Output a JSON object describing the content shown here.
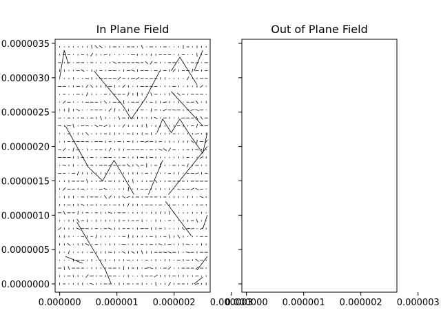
{
  "chart_data": [
    {
      "type": "quiver",
      "title": "In Plane Field",
      "xlabel": "",
      "ylabel": "",
      "x_ticks": [
        "0.000000",
        "0.000001",
        "0.000002",
        "0.000003"
      ],
      "y_ticks": [
        "0.0000000",
        "0.0000005",
        "0.0000010",
        "0.0000015",
        "0.0000020",
        "0.0000025",
        "0.0000030",
        "0.0000035"
      ],
      "x_tick_values": [
        0,
        1e-06,
        2e-06,
        3e-06
      ],
      "y_tick_values": [
        0,
        5e-07,
        1e-06,
        1.5e-06,
        2e-06,
        2.5e-06,
        3e-06,
        3.5e-06
      ],
      "xlim": [
        -8e-08,
        2.63e-06
      ],
      "ylim": [
        -1.2e-07,
        3.56e-06
      ],
      "grid": false,
      "x_spacing": 8e-08,
      "y_spacing": 1.15e-07,
      "line_color": "#000000",
      "segments": [
        {
          "x0": 0.0,
          "y0": 3e-06,
          "x1": 8e-08,
          "y1": 3.4e-06
        },
        {
          "x0": 8e-08,
          "y0": 3.4e-06,
          "x1": 1.5e-07,
          "y1": 3.2e-06
        },
        {
          "x0": 6e-07,
          "y0": 3.1e-06,
          "x1": 1.1e-06,
          "y1": 2.6e-06
        },
        {
          "x0": 1.1e-06,
          "y0": 2.6e-06,
          "x1": 1.25e-06,
          "y1": 2.4e-06
        },
        {
          "x0": 1.25e-06,
          "y0": 2.4e-06,
          "x1": 1.5e-06,
          "y1": 2.7e-06
        },
        {
          "x0": 1.5e-06,
          "y0": 2.7e-06,
          "x1": 1.75e-06,
          "y1": 3.1e-06
        },
        {
          "x0": 1.95e-06,
          "y0": 3.1e-06,
          "x1": 2.1e-06,
          "y1": 3.3e-06
        },
        {
          "x0": 2.1e-06,
          "y0": 3.3e-06,
          "x1": 2.4e-06,
          "y1": 2.9e-06
        },
        {
          "x0": 2.35e-06,
          "y0": 3.1e-06,
          "x1": 2.5e-06,
          "y1": 3.4e-06
        },
        {
          "x0": 1.95e-06,
          "y0": 2.8e-06,
          "x1": 2.5e-06,
          "y1": 2.3e-06
        },
        {
          "x0": 1.7e-06,
          "y0": 2.2e-06,
          "x1": 1.8e-06,
          "y1": 2.4e-06
        },
        {
          "x0": 1.8e-06,
          "y0": 2.4e-06,
          "x1": 1.95e-06,
          "y1": 2.2e-06
        },
        {
          "x0": 1.95e-06,
          "y0": 2.2e-06,
          "x1": 2.1e-06,
          "y1": 2.4e-06
        },
        {
          "x0": 2.1e-06,
          "y0": 2.4e-06,
          "x1": 2.25e-06,
          "y1": 2.2e-06
        },
        {
          "x0": 2.25e-06,
          "y0": 2.2e-06,
          "x1": 2.5e-06,
          "y1": 1.9e-06
        },
        {
          "x0": 2.5e-06,
          "y0": 1.9e-06,
          "x1": 2.58e-06,
          "y1": 2.2e-06
        },
        {
          "x0": 1e-07,
          "y0": 2.3e-06,
          "x1": 5e-07,
          "y1": 1.7e-06
        },
        {
          "x0": 5e-07,
          "y0": 1.7e-06,
          "x1": 7.5e-07,
          "y1": 1.5e-06
        },
        {
          "x0": 7.5e-07,
          "y0": 1.5e-06,
          "x1": 9.5e-07,
          "y1": 1.8e-06
        },
        {
          "x0": 9.5e-07,
          "y0": 1.8e-06,
          "x1": 1.3e-06,
          "y1": 1.3e-06
        },
        {
          "x0": 1.55e-06,
          "y0": 1.3e-06,
          "x1": 1.8e-06,
          "y1": 1.8e-06
        },
        {
          "x0": 1.9e-06,
          "y0": 1.3e-06,
          "x1": 2.58e-06,
          "y1": 2e-06
        },
        {
          "x0": 1.85e-06,
          "y0": 1.2e-06,
          "x1": 2.3e-06,
          "y1": 7e-07
        },
        {
          "x0": 2.5e-06,
          "y0": 8e-07,
          "x1": 2.58e-06,
          "y1": 1e-06
        },
        {
          "x0": 3e-07,
          "y0": 9e-07,
          "x1": 8e-07,
          "y1": 2e-07
        },
        {
          "x0": 8e-07,
          "y0": 2e-07,
          "x1": 9e-07,
          "y1": 0.0
        },
        {
          "x0": 1e-07,
          "y0": 4e-07,
          "x1": 4e-07,
          "y1": 3e-07
        },
        {
          "x0": 2.4e-06,
          "y0": 2e-07,
          "x1": 2.58e-06,
          "y1": 4e-07
        },
        {
          "x0": 2.35e-06,
          "y0": 0.0,
          "x1": 2.5e-06,
          "y1": 1e-07
        }
      ]
    },
    {
      "type": "quiver",
      "title": "Out of Plane Field",
      "xlabel": "",
      "ylabel": "",
      "x_ticks": [
        "0.000000",
        "0.000001",
        "0.000002",
        "0.000003"
      ],
      "x_tick_values": [
        0,
        1e-06,
        2e-06,
        3e-06
      ],
      "xlim": [
        -8e-08,
        2.63e-06
      ],
      "ylim": [
        -1.2e-07,
        3.56e-06
      ],
      "grid": false,
      "segments": []
    }
  ]
}
